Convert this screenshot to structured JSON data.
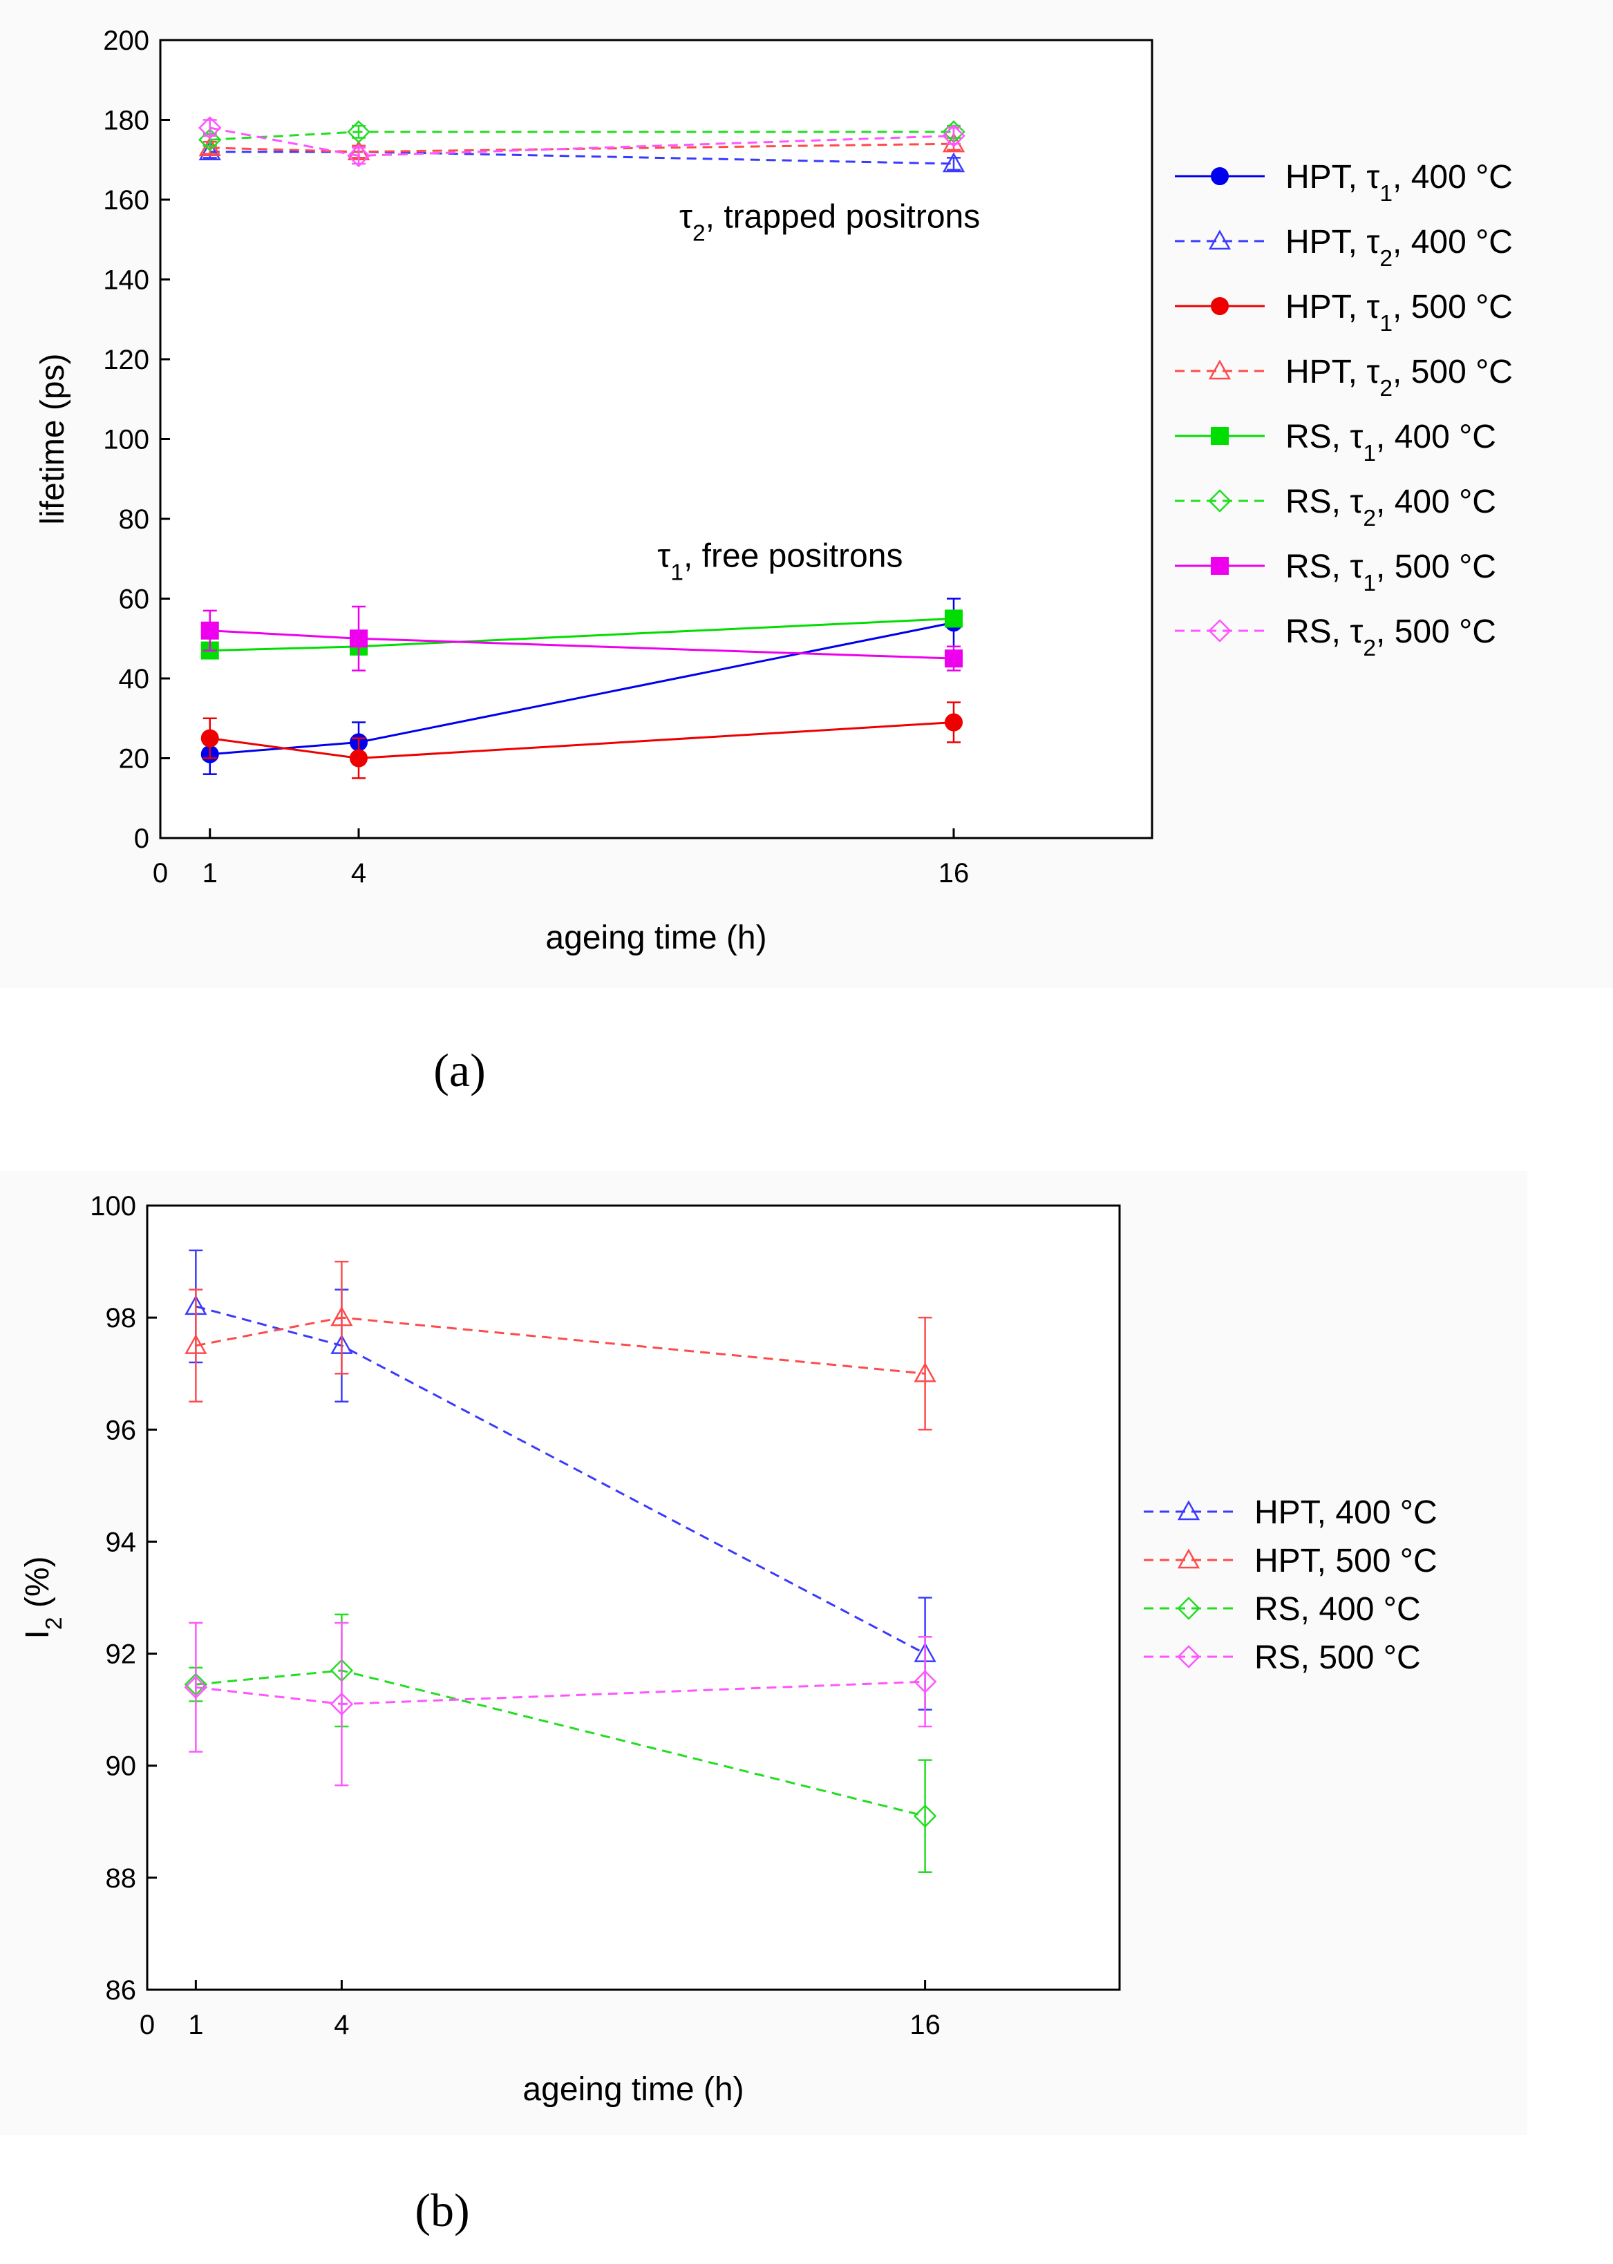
{
  "chart_data": [
    {
      "type": "line",
      "panel_label": "(a)",
      "xlabel": "ageing time (h)",
      "ylabel": "lifetime (ps)",
      "xlim": [
        0,
        20
      ],
      "ylim": [
        0,
        200
      ],
      "xticks": [
        0,
        1,
        4,
        16
      ],
      "yticks": [
        0,
        20,
        40,
        60,
        80,
        100,
        120,
        140,
        160,
        180,
        200
      ],
      "grid": false,
      "legend_position": "right",
      "annotations": [
        {
          "text": "τ2, trapped positrons",
          "x": 13.5,
          "y": 153
        },
        {
          "text": "τ1, free positrons",
          "x": 12.5,
          "y": 68
        }
      ],
      "x": [
        1,
        4,
        16
      ],
      "series": [
        {
          "name": "HPT, τ1, 400 °C",
          "color": "#0000ee",
          "style": "solid",
          "marker": "circle-filled",
          "values": [
            21,
            24,
            54
          ],
          "errors": [
            5,
            5,
            6
          ]
        },
        {
          "name": "HPT, τ2, 400 °C",
          "color": "#3a3aff",
          "style": "dashed",
          "marker": "triangle-open",
          "values": [
            172,
            172,
            169
          ],
          "errors": [
            1.5,
            1.5,
            1.5
          ]
        },
        {
          "name": "HPT, τ1, 500 °C",
          "color": "#ee0000",
          "style": "solid",
          "marker": "circle-filled",
          "values": [
            25,
            20,
            29
          ],
          "errors": [
            5,
            5,
            5
          ]
        },
        {
          "name": "HPT, τ2, 500 °C",
          "color": "#ff4a4a",
          "style": "dashed",
          "marker": "triangle-open",
          "values": [
            173,
            172,
            174
          ],
          "errors": [
            1.5,
            1.5,
            1.5
          ]
        },
        {
          "name": "RS, τ1, 400 °C",
          "color": "#00dd00",
          "style": "solid",
          "marker": "square-filled",
          "values": [
            47,
            48,
            55
          ],
          "errors": [
            2,
            2,
            2
          ]
        },
        {
          "name": "RS, τ2, 400 °C",
          "color": "#22dd22",
          "style": "dashed",
          "marker": "diamond-open",
          "values": [
            175,
            177,
            177
          ],
          "errors": [
            1.5,
            1.5,
            1.5
          ]
        },
        {
          "name": "RS, τ1, 500 °C",
          "color": "#ee00ee",
          "style": "solid",
          "marker": "square-filled",
          "values": [
            52,
            50,
            45
          ],
          "errors": [
            5,
            8,
            3
          ]
        },
        {
          "name": "RS, τ2, 500 °C",
          "color": "#ff55ff",
          "style": "dashed",
          "marker": "diamond-open",
          "values": [
            178,
            171,
            176
          ],
          "errors": [
            2,
            2,
            2
          ]
        }
      ]
    },
    {
      "type": "line",
      "panel_label": "(b)",
      "xlabel": "ageing time (h)",
      "ylabel": "I2 (%)",
      "xlim": [
        0,
        20
      ],
      "ylim": [
        86,
        100
      ],
      "xticks": [
        0,
        1,
        4,
        16
      ],
      "yticks": [
        86,
        88,
        90,
        92,
        94,
        96,
        98,
        100
      ],
      "grid": false,
      "legend_position": "right",
      "annotations": [],
      "x": [
        1,
        4,
        16
      ],
      "series": [
        {
          "name": "HPT, 400 °C",
          "color": "#3a3aff",
          "style": "dashed",
          "marker": "triangle-open",
          "values": [
            98.2,
            97.5,
            92.0
          ],
          "errors": [
            1.0,
            1.0,
            1.0
          ]
        },
        {
          "name": "HPT, 500 °C",
          "color": "#ff4a4a",
          "style": "dashed",
          "marker": "triangle-open",
          "values": [
            97.5,
            98.0,
            97.0
          ],
          "errors": [
            1.0,
            1.0,
            1.0
          ]
        },
        {
          "name": "RS, 400 °C",
          "color": "#22dd22",
          "style": "dashed",
          "marker": "diamond-open",
          "values": [
            91.45,
            91.7,
            89.1
          ],
          "errors": [
            0.3,
            1.0,
            1.0
          ]
        },
        {
          "name": "RS, 500 °C",
          "color": "#ff55ff",
          "style": "dashed",
          "marker": "diamond-open",
          "values": [
            91.4,
            91.1,
            91.5
          ],
          "errors": [
            1.15,
            1.45,
            0.8
          ]
        }
      ]
    }
  ]
}
